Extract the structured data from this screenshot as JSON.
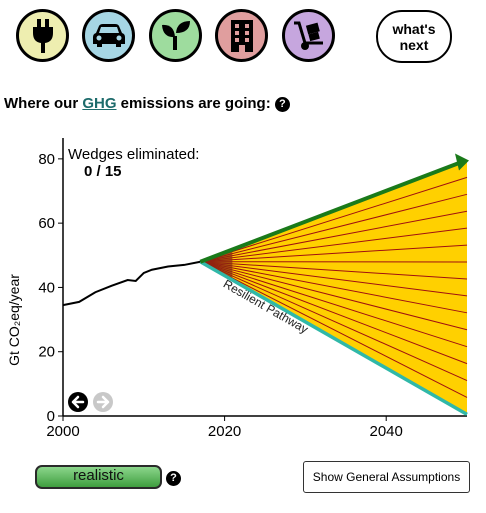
{
  "sector_buttons": [
    {
      "name": "electricity",
      "icon": "plug-icon",
      "color": "#eeeeb0"
    },
    {
      "name": "transportation",
      "icon": "car-icon",
      "color": "#a6d6e4"
    },
    {
      "name": "agriculture",
      "icon": "sprout-icon",
      "color": "#9edc9e"
    },
    {
      "name": "buildings",
      "icon": "building-icon",
      "color": "#e09e9e"
    },
    {
      "name": "materials",
      "icon": "hand-truck-icon",
      "color": "#c6a6de"
    }
  ],
  "next_button": {
    "line1": "what's",
    "line2": "next"
  },
  "heading": {
    "prefix": "Where our ",
    "link": "GHG",
    "suffix": " emissions are going:",
    "help": "?"
  },
  "wedges": {
    "label": "Wedges eliminated:",
    "count": "0 / 15"
  },
  "pathway_label": "Resilient Pathway",
  "controls": {
    "scenario_label": "realistic",
    "scenario_help": "?",
    "assumptions_label": "Show General Assumptions"
  },
  "chart_data": {
    "type": "area",
    "ylabel": "Gt CO₂eq/year",
    "xlim": [
      2000,
      2050
    ],
    "ylim": [
      0,
      84
    ],
    "x_ticks": [
      2000,
      2020,
      2040
    ],
    "y_ticks": [
      0,
      20,
      40,
      60,
      80
    ],
    "historical": {
      "x": [
        2000,
        2002,
        2004,
        2006,
        2008,
        2009,
        2010,
        2011,
        2013,
        2015,
        2017
      ],
      "y": [
        34.5,
        35.5,
        38.5,
        40.5,
        42.3,
        42,
        44.5,
        45.5,
        46.5,
        47,
        48
      ]
    },
    "business_as_usual": {
      "x": [
        2017,
        2050
      ],
      "y": [
        48,
        79.5
      ],
      "color": "#1a7a1a"
    },
    "resilient_pathway": {
      "x": [
        2017,
        2050
      ],
      "y": [
        48,
        0.5
      ],
      "color": "#30b8a8"
    },
    "wedge_count": 15,
    "wedge_fill": "#ffd000",
    "wedge_line": "#a01010"
  }
}
